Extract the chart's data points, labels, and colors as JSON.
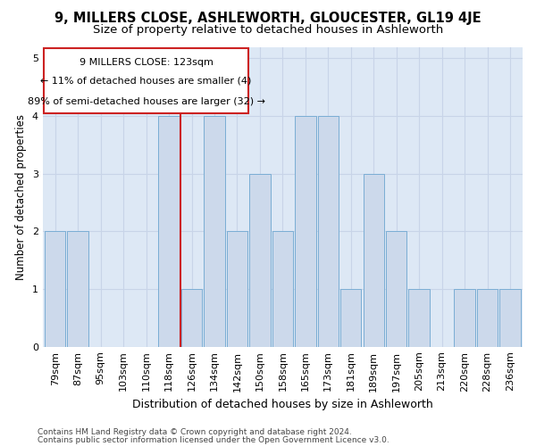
{
  "title": "9, MILLERS CLOSE, ASHLEWORTH, GLOUCESTER, GL19 4JE",
  "subtitle": "Size of property relative to detached houses in Ashleworth",
  "xlabel": "Distribution of detached houses by size in Ashleworth",
  "ylabel": "Number of detached properties",
  "categories": [
    "79sqm",
    "87sqm",
    "95sqm",
    "103sqm",
    "110sqm",
    "118sqm",
    "126sqm",
    "134sqm",
    "142sqm",
    "150sqm",
    "158sqm",
    "165sqm",
    "173sqm",
    "181sqm",
    "189sqm",
    "197sqm",
    "205sqm",
    "213sqm",
    "220sqm",
    "228sqm",
    "236sqm"
  ],
  "values": [
    2,
    2,
    0,
    0,
    0,
    4,
    1,
    4,
    2,
    3,
    2,
    4,
    4,
    1,
    3,
    2,
    1,
    0,
    1,
    1,
    1
  ],
  "bar_color": "#ccd9eb",
  "bar_edge_color": "#7aadd4",
  "annotation_line1": "9 MILLERS CLOSE: 123sqm",
  "annotation_line2": "← 11% of detached houses are smaller (4)",
  "annotation_line3": "89% of semi-detached houses are larger (32) →",
  "annotation_box_color": "#ffffff",
  "annotation_box_edge": "#cc2222",
  "red_line_color": "#cc2222",
  "ylim": [
    0,
    5.2
  ],
  "yticks": [
    0,
    1,
    2,
    3,
    4,
    5
  ],
  "grid_color": "#c8d4e8",
  "bg_color": "#dde8f5",
  "footer1": "Contains HM Land Registry data © Crown copyright and database right 2024.",
  "footer2": "Contains public sector information licensed under the Open Government Licence v3.0.",
  "title_fontsize": 10.5,
  "subtitle_fontsize": 9.5,
  "xlabel_fontsize": 9,
  "ylabel_fontsize": 8.5,
  "tick_fontsize": 8,
  "footer_fontsize": 6.5,
  "annotation_fontsize": 8
}
